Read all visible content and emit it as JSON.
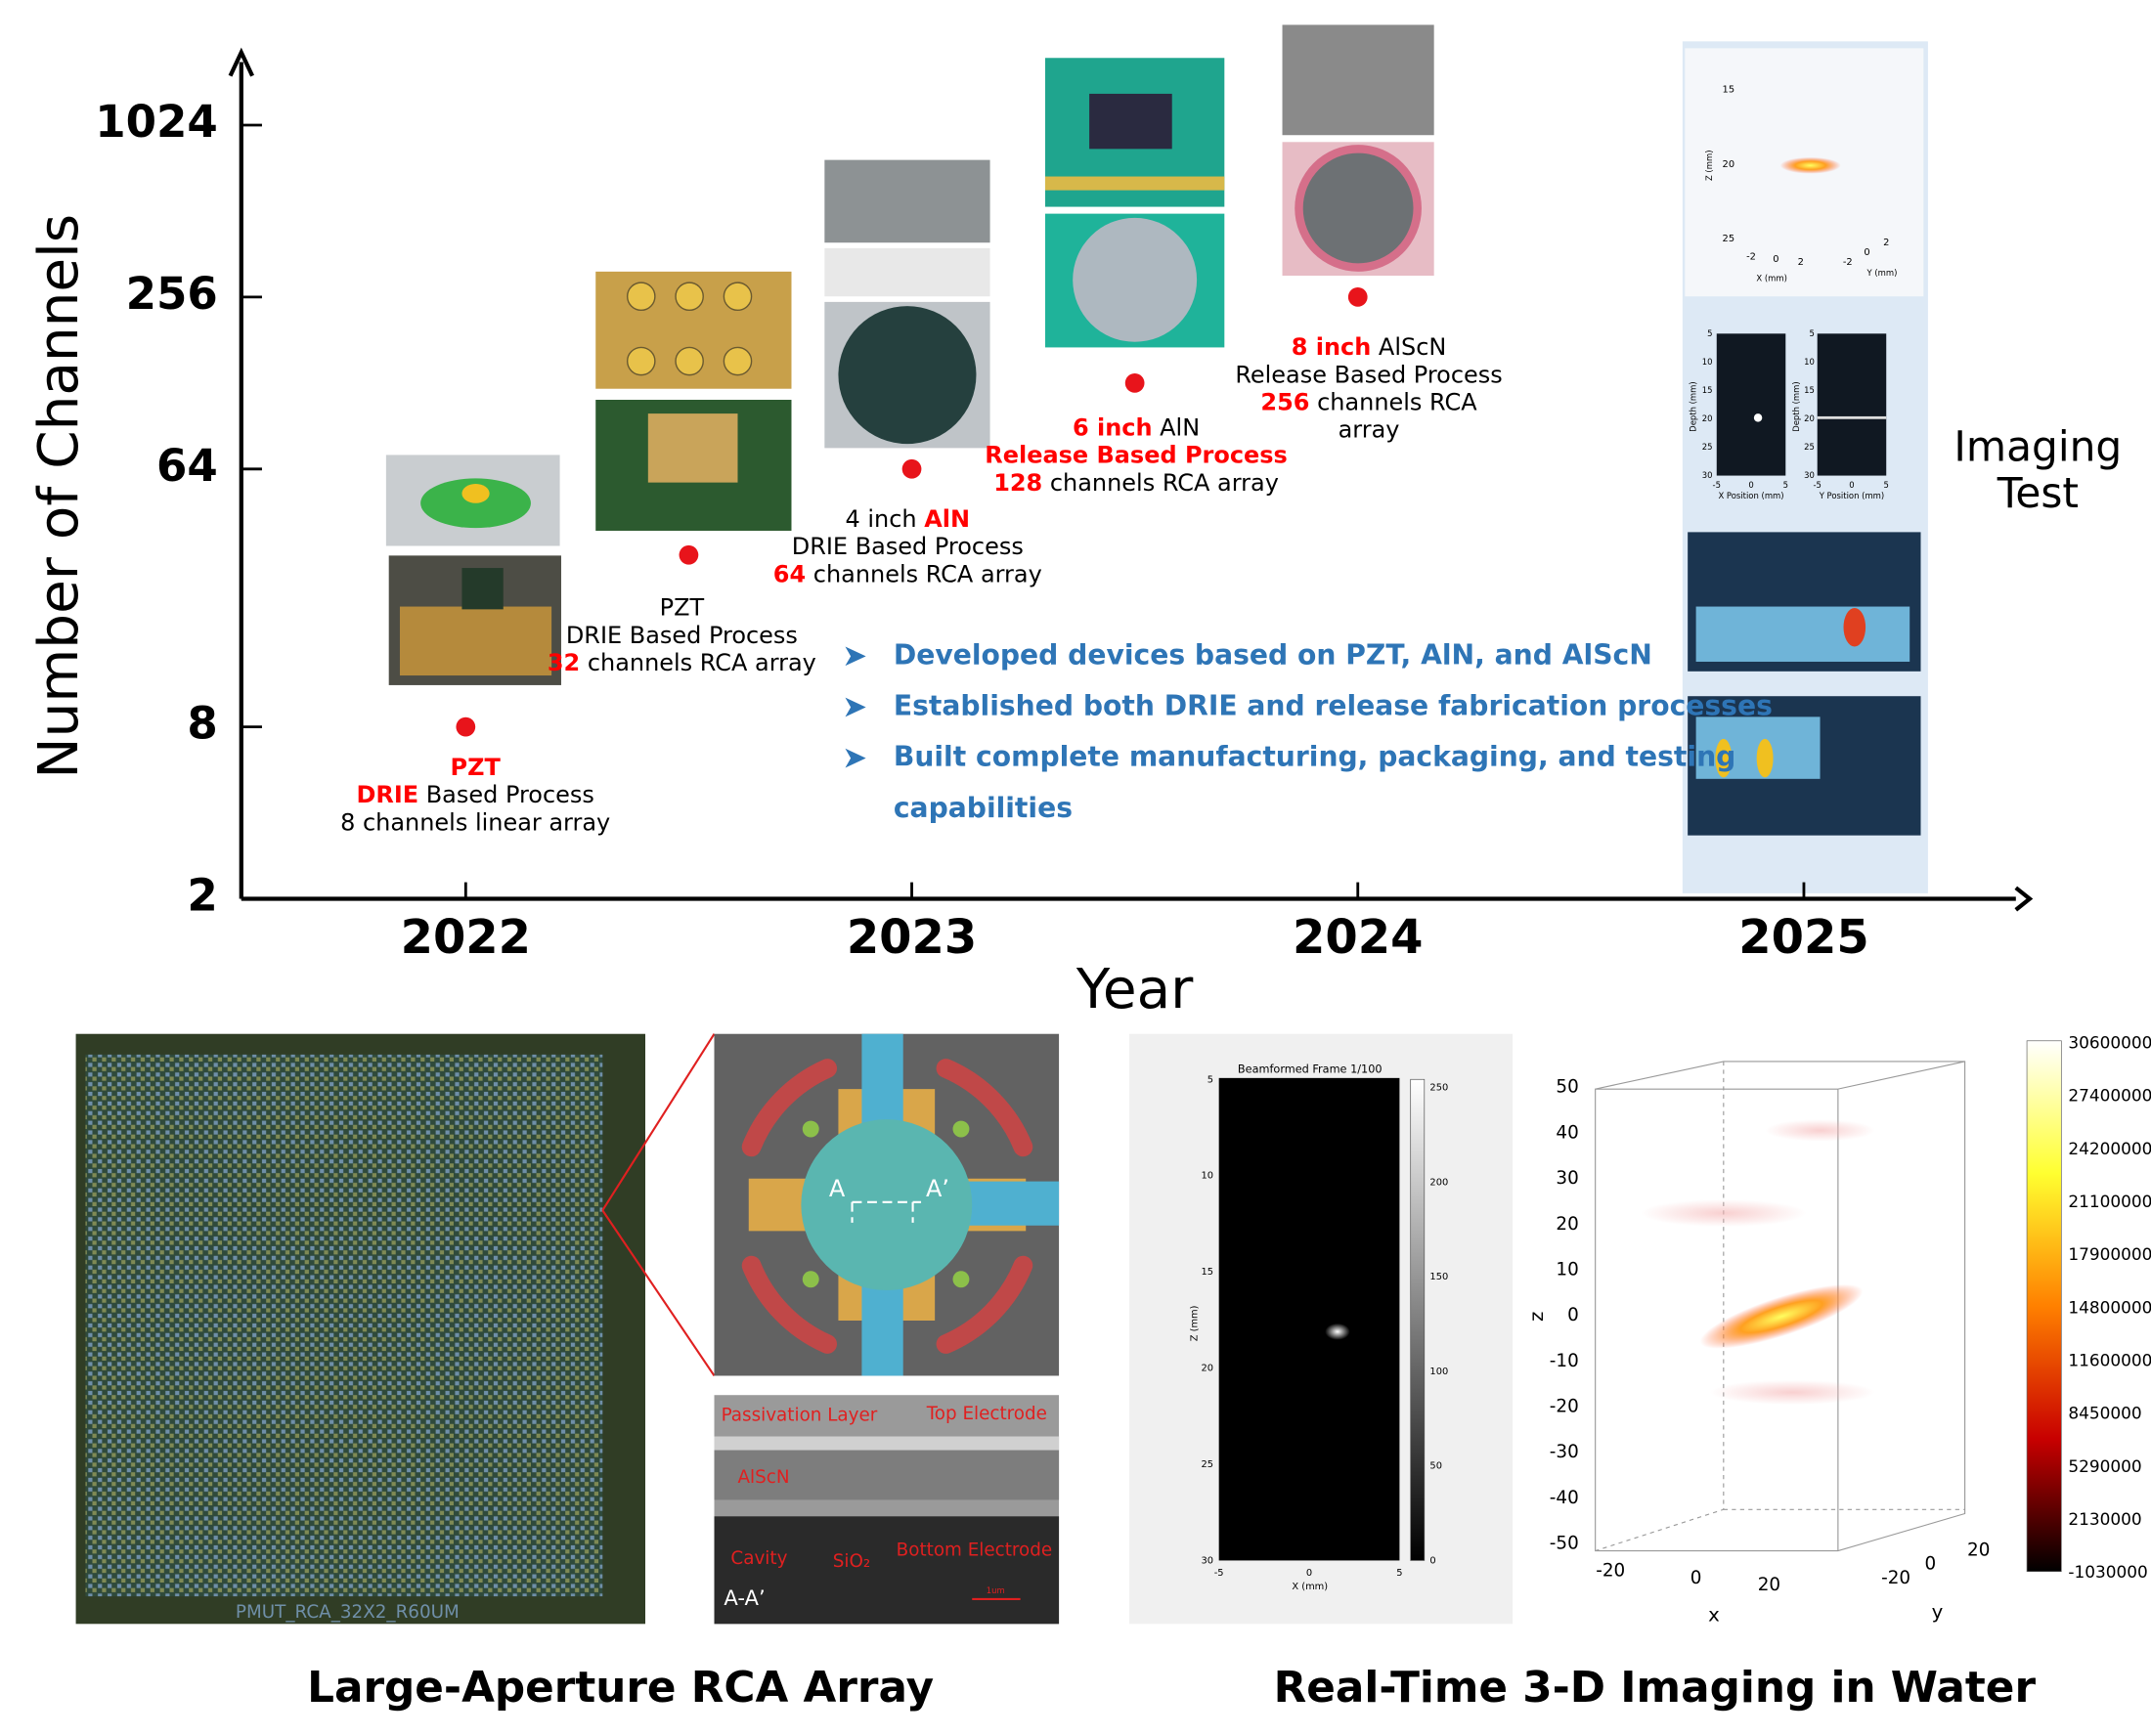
{
  "chart_data": {
    "type": "scatter",
    "x": [
      2022,
      2022.5,
      2023,
      2023.5,
      2024
    ],
    "values": [
      8,
      32,
      64,
      128,
      256
    ],
    "color": "#e8141b",
    "xlabel": "Year",
    "ylabel": "Number of Channels",
    "xlim": [
      2021.5,
      2025.5
    ],
    "xticks": [
      2022,
      2023,
      2024,
      2025
    ],
    "ylim": [
      2,
      1800
    ],
    "yticks": [
      2,
      8,
      64,
      256,
      1024
    ],
    "yscale": "log",
    "highlight_color": "#ff0000",
    "annotations": [
      [
        [
          {
            "text": "PZT",
            "highlight": true
          }
        ],
        [
          {
            "text": "DRIE",
            "highlight": true
          },
          {
            "text": " Based Process"
          }
        ],
        [
          {
            "text": "8 channels linear array"
          }
        ]
      ],
      [
        [
          {
            "text": "PZT"
          }
        ],
        [
          {
            "text": "DRIE Based Process"
          }
        ],
        [
          {
            "text": "32",
            "highlight": true
          },
          {
            "text": " channels RCA array"
          }
        ]
      ],
      [
        [
          {
            "text": "4 inch "
          },
          {
            "text": "AlN",
            "highlight": true
          }
        ],
        [
          {
            "text": "DRIE Based Process"
          }
        ],
        [
          {
            "text": "64",
            "highlight": true
          },
          {
            "text": " channels RCA array"
          }
        ]
      ],
      [
        [
          {
            "text": "6 inch",
            "highlight": true
          },
          {
            "text": " AlN"
          }
        ],
        [
          {
            "text": "Release Based Process",
            "highlight": true
          }
        ],
        [
          {
            "text": "128",
            "highlight": true
          },
          {
            "text": " channels RCA array"
          }
        ]
      ],
      [
        [
          {
            "text": "8 inch",
            "highlight": true
          },
          {
            "text": " AlScN"
          }
        ],
        [
          {
            "text": "Release Based Process"
          }
        ],
        [
          {
            "text": "256",
            "highlight": true
          },
          {
            "text": " channels RCA"
          }
        ],
        [
          {
            "text": "array"
          }
        ]
      ]
    ],
    "bullet_color": "#2e75b6",
    "bullets": [
      [
        "Developed devices based on PZT, AlN, and AlScN"
      ],
      [
        "Established both DRIE and release fabrication processes"
      ],
      [
        "Built complete manufacturing, packaging, and testing",
        "capabilities"
      ]
    ],
    "highlight_band": {
      "x": 2025,
      "color": "#dde9f5",
      "label": [
        "Imaging",
        "Test"
      ]
    }
  },
  "imaging_test": {
    "volume": {
      "zticks": [
        15,
        20,
        25
      ],
      "xticks": [
        -2,
        0,
        2
      ],
      "yticks": [
        -2,
        0,
        2
      ],
      "zlabel": "Z (mm)",
      "xlabel": "X (mm)",
      "ylabel": "Y (mm)"
    },
    "slices": {
      "depth_label": "Depth (mm)",
      "depth_ticks": [
        5,
        10,
        15,
        20,
        25,
        30
      ],
      "xticks": [
        -5,
        0,
        5
      ],
      "xlabel": "X Position (mm)",
      "ylabel": "Y Position (mm)"
    }
  },
  "panels": {
    "left_title": "Large-Aperture RCA Array",
    "right_title": "Real-Time 3-D Imaging in Water",
    "chip_label": "PMUT_RCA_32X2_R60UM",
    "cell_labels": [
      "A",
      "A’"
    ],
    "cross_section": {
      "labels": [
        "Passivation Layer",
        "Top Electrode",
        "AlScN",
        "Cavity",
        "SiO₂",
        "Bottom Electrode"
      ],
      "section": "A-A’",
      "scale": "1um"
    },
    "beamformed": {
      "title": "Beamformed Frame 1/100",
      "zlabel": "Z (mm)",
      "xlabel": "X (mm)",
      "zticks": [
        5,
        10,
        15,
        20,
        25,
        30
      ],
      "xticks": [
        -5,
        0,
        5
      ],
      "cticks": [
        250,
        200,
        150,
        100,
        50,
        0
      ]
    },
    "volume": {
      "xlabel": "x",
      "ylabel": "y",
      "zlabel": "z",
      "zticks": [
        50,
        40,
        30,
        20,
        10,
        0,
        -10,
        -20,
        -30,
        -40,
        -50
      ],
      "xticks": [
        -20,
        0,
        20
      ],
      "yticks": [
        -20,
        0,
        20
      ],
      "cticks": [
        30600000,
        27400000,
        24200000,
        21100000,
        17900000,
        14800000,
        11600000,
        8450000,
        5290000,
        2130000,
        -1030000
      ]
    }
  }
}
